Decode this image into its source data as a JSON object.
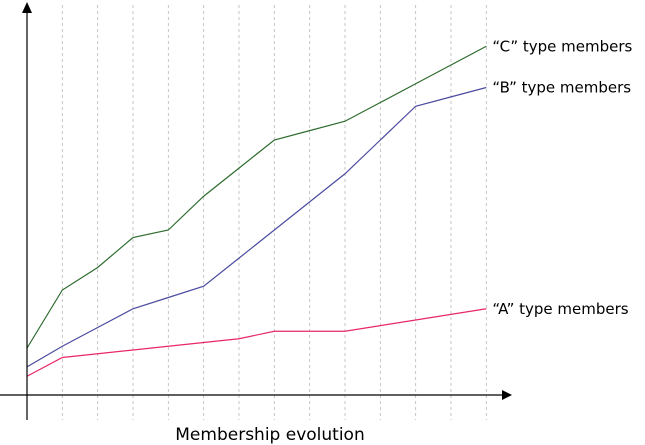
{
  "chart_data": {
    "type": "line",
    "title": "",
    "xlabel": "Membership evolution",
    "ylabel": "",
    "x": [
      0,
      1,
      2,
      3,
      4,
      5,
      6,
      7,
      8,
      9,
      10,
      11,
      12,
      13
    ],
    "xlim": [
      0,
      13.5
    ],
    "ylim": [
      0,
      100
    ],
    "grid": "vertical dashed",
    "legend": "labels at line ends, right side",
    "series": [
      {
        "name": "“C” type members",
        "color": "#2e6b2e",
        "values": [
          12.5,
          28.0,
          34.0,
          42.0,
          44.0,
          53.0,
          60.5,
          68.0,
          70.5,
          73.0,
          78.0,
          83.0,
          88.0,
          93.0
        ]
      },
      {
        "name": "“B” type members",
        "color": "#4b4ba0",
        "values": [
          7.5,
          13.0,
          18.0,
          23.0,
          26.0,
          29.0,
          36.5,
          44.0,
          51.5,
          59.0,
          68.0,
          77.0,
          79.5,
          82.0
        ]
      },
      {
        "name": "“A” type members",
        "color": "#e8266a",
        "values": [
          5.0,
          10.0,
          11.0,
          12.0,
          13.0,
          14.0,
          15.0,
          17.0,
          17.0,
          17.0,
          18.5,
          20.0,
          21.5,
          23.0
        ]
      }
    ]
  }
}
